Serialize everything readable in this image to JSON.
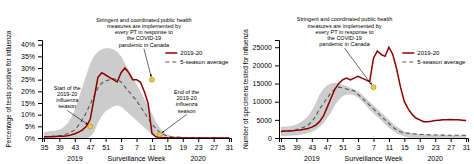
{
  "chart_data": [
    {
      "type": "line",
      "ylabel": "Percentage of tests positive for influenza",
      "xlabel": "Surveillance Week",
      "categories": [
        "35",
        null,
        null,
        null,
        "39",
        null,
        null,
        null,
        "43",
        null,
        null,
        null,
        "47",
        null,
        null,
        null,
        "51",
        null,
        null,
        null,
        "3",
        null,
        null,
        null,
        "7",
        null,
        null,
        null,
        "11",
        null,
        null,
        null,
        "15",
        null,
        null,
        null,
        "19",
        null,
        null,
        null,
        "23",
        null,
        null,
        null,
        "27",
        null,
        null,
        null,
        "31"
      ],
      "ylim": [
        0,
        42
      ],
      "yticks": [
        {
          "value": 0,
          "label": "0%"
        },
        {
          "value": 5,
          "label": "5%"
        },
        {
          "value": 10,
          "label": "10%"
        },
        {
          "value": 15,
          "label": "15%"
        },
        {
          "value": 20,
          "label": "20%"
        },
        {
          "value": 25,
          "label": "25%"
        },
        {
          "value": 30,
          "label": "30%"
        },
        {
          "value": 35,
          "label": "35%"
        },
        {
          "value": 40,
          "label": "40%"
        }
      ],
      "grid": false,
      "legend": "upper right",
      "series": [
        {
          "name": "2019-20",
          "color": "#8b0000",
          "line_style": "solid",
          "values": [
            0.5,
            0.5,
            0.5,
            0.6,
            0.7,
            0.8,
            1.0,
            1.3,
            1.8,
            2.5,
            3.5,
            5.0,
            8.0,
            17.0,
            26.0,
            28.0,
            27.0,
            26.0,
            25.0,
            24.0,
            28.0,
            30.0,
            28.0,
            25.0,
            25.0,
            24.0,
            20.0,
            15.0,
            2.0,
            0.5,
            0.2,
            0.1,
            0.1,
            0.1,
            0.05,
            0.05,
            0.05,
            0.05,
            0.05,
            0.05,
            0.05,
            0.05,
            0.05,
            0.05,
            0.05,
            0.05,
            0.05,
            0.05,
            0.05
          ]
        },
        {
          "name": "5-season average",
          "color": "#555555",
          "line_style": "dashed",
          "values": [
            0.5,
            0.6,
            0.7,
            0.8,
            1.0,
            1.3,
            1.8,
            2.5,
            3.5,
            5.5,
            8.0,
            11.0,
            14.5,
            18.0,
            21.5,
            23.5,
            24.5,
            25.0,
            25.5,
            25.0,
            24.0,
            22.0,
            20.0,
            18.0,
            16.0,
            13.5,
            11.0,
            8.5,
            6.0,
            4.0,
            2.5,
            1.5,
            0.9,
            0.5,
            0.4,
            0.3,
            0.25,
            0.2,
            0.18,
            0.15,
            0.12,
            0.1,
            0.08,
            0.07,
            0.07,
            0.06,
            0.06,
            0.05,
            0.05
          ],
          "upper": [
            2.5,
            2.8,
            3.0,
            3.2,
            3.5,
            4.5,
            6.0,
            8.5,
            12.0,
            17.0,
            22.0,
            27.0,
            32.0,
            35.0,
            37.0,
            38.0,
            38.5,
            38.5,
            38.0,
            37.0,
            35.0,
            32.0,
            29.0,
            26.0,
            23.0,
            20.0,
            17.0,
            14.0,
            10.5,
            7.0,
            4.5,
            2.5,
            1.5,
            1.0,
            0.8,
            0.6,
            0.5,
            0.4,
            0.35,
            0.3,
            0.25,
            0.2,
            0.15,
            0.12,
            0.1,
            0.08,
            0.07,
            0.06,
            0.06
          ],
          "lower": [
            0.0,
            0.0,
            0.0,
            0.0,
            0.0,
            0.0,
            0.0,
            0.0,
            0.0,
            0.0,
            0.0,
            0.0,
            0.5,
            2.5,
            6.5,
            9.5,
            11.5,
            12.5,
            13.5,
            14.0,
            13.5,
            12.0,
            10.5,
            9.0,
            7.5,
            6.0,
            4.5,
            3.0,
            1.5,
            0.5,
            0.0,
            0.0,
            0.0,
            0.0,
            0.0,
            0.0,
            0.0,
            0.0,
            0.0,
            0.0,
            0.0,
            0.0,
            0.0,
            0.0,
            0.0,
            0.0,
            0.0,
            0.0,
            0.0
          ]
        }
      ],
      "annotations": [
        {
          "text": "Start of the\n2019-20\ninfluenza\nseason",
          "index": 12,
          "value": 5.0
        },
        {
          "text": "Stringent and coordinated public health\nmeasures are implemented by\nevery PT in response to\nthe COVID-19\npandemic in Canada",
          "index": 28,
          "value": 25.0
        },
        {
          "text": "End of the\n2019-20\ninfluenza\nseason",
          "index": 30,
          "value": 1.5
        }
      ],
      "period_labels": [
        {
          "text": "2019",
          "index": 8
        },
        {
          "text": "2020",
          "index": 40
        }
      ]
    },
    {
      "type": "line",
      "ylabel": "Number of specimens tested for influenza",
      "xlabel": "Surveillance Week",
      "categories": [
        "35",
        null,
        null,
        null,
        "39",
        null,
        null,
        null,
        "43",
        null,
        null,
        null,
        "47",
        null,
        null,
        null,
        "51",
        null,
        null,
        null,
        "3",
        null,
        null,
        null,
        "7",
        null,
        null,
        null,
        "11",
        null,
        null,
        null,
        "15",
        null,
        null,
        null,
        "19",
        null,
        null,
        null,
        "23",
        null,
        null,
        null,
        "27",
        null,
        null,
        null,
        "31"
      ],
      "ylim": [
        0,
        27000
      ],
      "yticks": [
        0,
        5000,
        10000,
        15000,
        20000,
        25000
      ],
      "grid": false,
      "legend": "upper right",
      "series": [
        {
          "name": "2019-20",
          "color": "#8b0000",
          "line_style": "solid",
          "values": [
            1800,
            1900,
            1900,
            2000,
            2100,
            2200,
            2400,
            2600,
            3000,
            3500,
            4500,
            6000,
            8500,
            11000,
            13500,
            15000,
            16000,
            16500,
            16000,
            16500,
            17000,
            16500,
            16000,
            15500,
            22000,
            24000,
            23000,
            22500,
            25000,
            23000,
            19000,
            14000,
            10000,
            8000,
            6500,
            5500,
            5000,
            4500,
            4500,
            4600,
            4800,
            4900,
            5000,
            5000,
            5100,
            5000,
            5000,
            4900,
            4800
          ]
        },
        {
          "name": "5-season average",
          "color": "#555555",
          "line_style": "dashed",
          "values": [
            1800,
            1900,
            2000,
            2100,
            2300,
            2600,
            3000,
            3500,
            4500,
            6000,
            8000,
            9500,
            11000,
            12500,
            13500,
            14000,
            13800,
            13500,
            13200,
            13000,
            12000,
            11000,
            10000,
            9000,
            8000,
            7000,
            6000,
            5000,
            4000,
            3000,
            2200,
            1700,
            1400,
            1300,
            1200,
            1100,
            1000,
            950,
            900,
            850,
            830,
            820,
            800,
            780,
            770,
            760,
            750,
            740,
            730
          ],
          "upper": [
            3000,
            3100,
            3200,
            3400,
            3700,
            4200,
            5000,
            6000,
            7500,
            9500,
            12000,
            13500,
            14500,
            15000,
            15200,
            15000,
            14700,
            14300,
            13800,
            13400,
            12800,
            12000,
            11000,
            10000,
            9000,
            8000,
            7000,
            6000,
            5000,
            4000,
            3200,
            2400,
            1800,
            1500,
            1300,
            1200,
            1100,
            1050,
            1000,
            950,
            900,
            870,
            850,
            830,
            810,
            790,
            770,
            760,
            750
          ],
          "lower": [
            500,
            550,
            600,
            650,
            750,
            900,
            1100,
            1300,
            1700,
            2200,
            3000,
            4000,
            5500,
            7000,
            9000,
            10500,
            11500,
            12000,
            12000,
            11800,
            11200,
            10200,
            9000,
            7800,
            6800,
            5800,
            4800,
            3800,
            2800,
            2000,
            1300,
            800,
            400,
            200,
            100,
            60,
            30,
            15,
            8,
            5,
            3,
            2,
            2,
            1,
            1,
            1,
            1,
            1,
            1
          ]
        }
      ],
      "annotations": [
        {
          "text": "Stringent and coordinated public health\nmeasures are implemented by\nevery PT in response to\nthe COVID-19\npandemic in Canada",
          "index": 24,
          "value": 14000
        }
      ],
      "period_labels": [
        {
          "text": "2019",
          "index": 8
        },
        {
          "text": "2020",
          "index": 40
        }
      ]
    }
  ]
}
